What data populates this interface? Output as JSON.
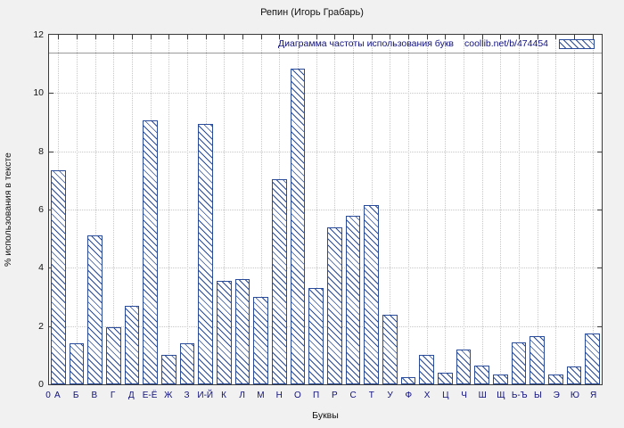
{
  "chart_data": {
    "type": "bar",
    "title": "Репин (Игорь Грабарь)",
    "xlabel": "Буквы",
    "ylabel": "% использования в тексте",
    "ylim": [
      0,
      12
    ],
    "yticks": [
      0,
      2,
      4,
      6,
      8,
      10,
      12
    ],
    "origin_label": "0",
    "grid": true,
    "legend": {
      "label": "Диаграмма частоты использования букв",
      "source": "coollib.net/b/474454",
      "position": "top-right",
      "swatch": "hatched-swatch"
    },
    "bar_color": "#2a4a9a",
    "hatch": "diagonal",
    "background": "#f1f1f1",
    "plot_background": "#ffffff",
    "categories": [
      "А",
      "Б",
      "В",
      "Г",
      "Д",
      "Е-Ё",
      "Ж",
      "З",
      "И-Й",
      "К",
      "Л",
      "М",
      "Н",
      "О",
      "П",
      "Р",
      "С",
      "Т",
      "У",
      "Ф",
      "Х",
      "Ц",
      "Ч",
      "Ш",
      "Щ",
      "Ь-Ъ",
      "Ы",
      "Э",
      "Ю",
      "Я"
    ],
    "values": [
      7.35,
      1.4,
      5.1,
      1.95,
      2.7,
      9.05,
      1.0,
      1.4,
      8.95,
      3.55,
      3.6,
      3.0,
      7.05,
      10.85,
      3.3,
      5.4,
      5.8,
      6.15,
      2.4,
      0.25,
      1.0,
      0.4,
      1.2,
      0.65,
      0.35,
      1.45,
      1.65,
      0.35,
      0.6,
      1.75
    ]
  }
}
